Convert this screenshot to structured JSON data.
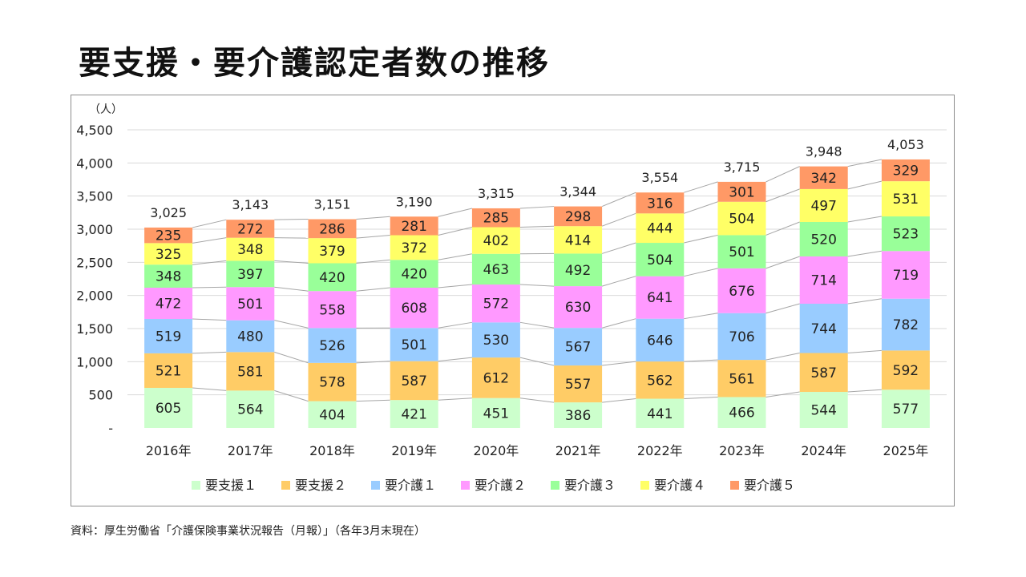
{
  "title": "要支援・要介護認定者数の推移",
  "source": "資料：厚生労働省「介護保険事業状況報告（月報）」（各年3月末現在）",
  "colors": {
    "要支援１": "#ccffcc",
    "要支援２": "#ffcc66",
    "要介護１": "#99ccff",
    "要介護２": "#ff99ff",
    "要介護３": "#99ff99",
    "要介護４": "#ffff66",
    "要介護５": "#ff9966",
    "gridline": "#d9d9d9",
    "connector": "#a6a6a6"
  },
  "chart_data": {
    "type": "bar",
    "stacked": true,
    "title": "",
    "xlabel": "",
    "ylabel": "（人）",
    "ylim": [
      0,
      4500
    ],
    "yticks": [
      0,
      500,
      1000,
      1500,
      2000,
      2500,
      3000,
      3500,
      4000,
      4500
    ],
    "yticklabels": [
      "-",
      "500",
      "1,000",
      "1,500",
      "2,000",
      "2,500",
      "3,000",
      "3,500",
      "4,000",
      "4,500"
    ],
    "grid": true,
    "legend": "bottom",
    "categories": [
      "2016年",
      "2017年",
      "2018年",
      "2019年",
      "2020年",
      "2021年",
      "2022年",
      "2023年",
      "2024年",
      "2025年"
    ],
    "series": [
      {
        "name": "要支援１",
        "values": [
          605,
          564,
          404,
          421,
          451,
          386,
          441,
          466,
          544,
          577
        ]
      },
      {
        "name": "要支援２",
        "values": [
          521,
          581,
          578,
          587,
          612,
          557,
          562,
          561,
          587,
          592
        ]
      },
      {
        "name": "要介護１",
        "values": [
          519,
          480,
          526,
          501,
          530,
          567,
          646,
          706,
          744,
          782
        ]
      },
      {
        "name": "要介護２",
        "values": [
          472,
          501,
          558,
          608,
          572,
          630,
          641,
          676,
          714,
          719
        ]
      },
      {
        "name": "要介護３",
        "values": [
          348,
          397,
          420,
          420,
          463,
          492,
          504,
          501,
          520,
          523
        ]
      },
      {
        "name": "要介護４",
        "values": [
          325,
          348,
          379,
          372,
          402,
          414,
          444,
          504,
          497,
          531
        ]
      },
      {
        "name": "要介護５",
        "values": [
          235,
          272,
          286,
          281,
          285,
          298,
          316,
          301,
          342,
          329
        ]
      }
    ],
    "totals": [
      "3,025",
      "3,143",
      "3,151",
      "3,190",
      "3,315",
      "3,344",
      "3,554",
      "3,715",
      "3,948",
      "4,053"
    ],
    "series_lines": true
  }
}
